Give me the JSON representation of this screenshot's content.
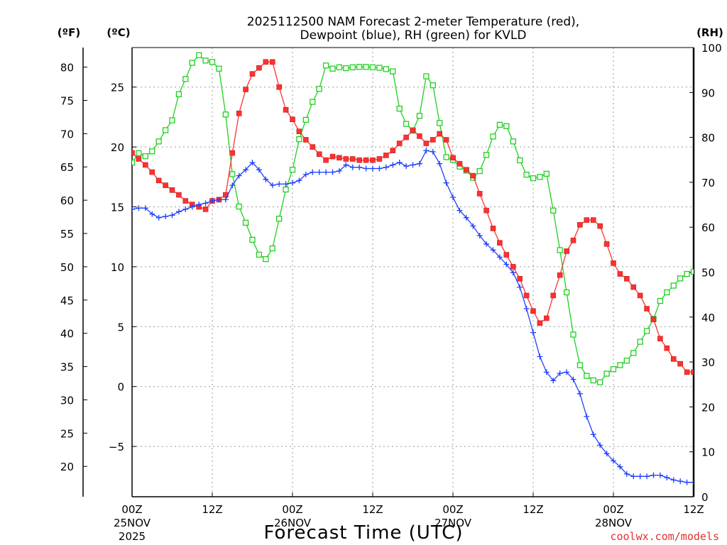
{
  "chart_data": {
    "type": "line",
    "title_line1": "2025112500 NAM Forecast 2-meter Temperature (red),",
    "title_line2": "Dewpoint (blue), RH (green) for KVLD",
    "xlabel": "Forecast Time (UTC)",
    "credit": "coolwx.com/models",
    "units": {
      "fahrenheit": "(ºF)",
      "celsius": "(ºC)",
      "rh": "(RH)"
    },
    "x_range_hours": [
      0,
      84
    ],
    "celsius_range": [
      -9.2,
      28.3
    ],
    "rh_range": [
      0,
      100
    ],
    "celsius_ticks": [
      -5,
      0,
      5,
      10,
      15,
      20,
      25
    ],
    "celsius_tick_labels": [
      "−5",
      "0",
      "5",
      "10",
      "15",
      "20",
      "25"
    ],
    "fahrenheit_ticks": [
      20,
      25,
      30,
      35,
      40,
      45,
      50,
      55,
      60,
      65,
      70,
      75,
      80
    ],
    "rh_ticks": [
      0,
      10,
      20,
      30,
      40,
      50,
      60,
      70,
      80,
      90,
      100
    ],
    "x_ticks": [
      {
        "hour": 0,
        "line1": "00Z",
        "line2": "25NOV",
        "line3": "2025"
      },
      {
        "hour": 12,
        "line1": "12Z",
        "line2": "",
        "line3": ""
      },
      {
        "hour": 24,
        "line1": "00Z",
        "line2": "26NOV",
        "line3": ""
      },
      {
        "hour": 36,
        "line1": "12Z",
        "line2": "",
        "line3": ""
      },
      {
        "hour": 48,
        "line1": "00Z",
        "line2": "27NOV",
        "line3": ""
      },
      {
        "hour": 60,
        "line1": "12Z",
        "line2": "",
        "line3": ""
      },
      {
        "hour": 72,
        "line1": "00Z",
        "line2": "28NOV",
        "line3": ""
      },
      {
        "hour": 84,
        "line1": "12Z",
        "line2": "",
        "line3": ""
      }
    ],
    "colors": {
      "temperature": "#ff3030",
      "dewpoint": "#2040ff",
      "rh": "#20d020",
      "marker_edge": "#c02020"
    },
    "series": [
      {
        "name": "Temperature",
        "unit": "C",
        "points": [
          [
            0,
            19.5
          ],
          [
            1,
            19.0
          ],
          [
            2,
            18.5
          ],
          [
            3,
            17.9
          ],
          [
            4,
            17.2
          ],
          [
            5,
            16.8
          ],
          [
            6,
            16.4
          ],
          [
            7,
            16.0
          ],
          [
            8,
            15.5
          ],
          [
            9,
            15.2
          ],
          [
            10,
            15.0
          ],
          [
            11,
            14.8
          ],
          [
            12,
            15.5
          ],
          [
            13,
            15.6
          ],
          [
            14,
            16.0
          ],
          [
            15,
            19.5
          ],
          [
            16,
            22.8
          ],
          [
            17,
            24.8
          ],
          [
            18,
            26.1
          ],
          [
            19,
            26.6
          ],
          [
            20,
            27.1
          ],
          [
            21,
            27.1
          ],
          [
            22,
            25.0
          ],
          [
            23,
            23.1
          ],
          [
            24,
            22.3
          ],
          [
            25,
            21.3
          ],
          [
            26,
            20.6
          ],
          [
            27,
            20.0
          ],
          [
            28,
            19.4
          ],
          [
            29,
            18.9
          ],
          [
            30,
            19.2
          ],
          [
            31,
            19.1
          ],
          [
            32,
            19.0
          ],
          [
            33,
            19.0
          ],
          [
            34,
            18.9
          ],
          [
            35,
            18.9
          ],
          [
            36,
            18.9
          ],
          [
            37,
            19.0
          ],
          [
            38,
            19.3
          ],
          [
            39,
            19.7
          ],
          [
            40,
            20.3
          ],
          [
            41,
            20.8
          ],
          [
            42,
            21.4
          ],
          [
            43,
            20.9
          ],
          [
            44,
            20.3
          ],
          [
            45,
            20.6
          ],
          [
            46,
            21.1
          ],
          [
            47,
            20.6
          ],
          [
            48,
            19.1
          ],
          [
            49,
            18.6
          ],
          [
            50,
            18.1
          ],
          [
            51,
            17.6
          ],
          [
            52,
            16.1
          ],
          [
            53,
            14.7
          ],
          [
            54,
            13.2
          ],
          [
            55,
            12.0
          ],
          [
            56,
            11.0
          ],
          [
            57,
            10.0
          ],
          [
            58,
            9.0
          ],
          [
            59,
            7.6
          ],
          [
            60,
            6.3
          ],
          [
            61,
            5.3
          ],
          [
            62,
            5.7
          ],
          [
            63,
            7.6
          ],
          [
            64,
            9.3
          ],
          [
            65,
            11.3
          ],
          [
            66,
            12.2
          ],
          [
            67,
            13.5
          ],
          [
            68,
            13.9
          ],
          [
            69,
            13.9
          ],
          [
            70,
            13.4
          ],
          [
            71,
            11.9
          ],
          [
            72,
            10.3
          ],
          [
            73,
            9.4
          ],
          [
            74,
            9.0
          ],
          [
            75,
            8.3
          ],
          [
            76,
            7.6
          ],
          [
            77,
            6.5
          ],
          [
            78,
            5.6
          ],
          [
            79,
            4.0
          ],
          [
            80,
            3.2
          ],
          [
            81,
            2.3
          ],
          [
            82,
            1.9
          ],
          [
            83,
            1.2
          ],
          [
            84,
            1.2
          ],
          [
            85,
            1.6
          ]
        ]
      },
      {
        "name": "Dewpoint",
        "unit": "C",
        "points": [
          [
            0,
            14.8
          ],
          [
            1,
            14.9
          ],
          [
            2,
            14.9
          ],
          [
            3,
            14.4
          ],
          [
            4,
            14.1
          ],
          [
            5,
            14.2
          ],
          [
            6,
            14.3
          ],
          [
            7,
            14.6
          ],
          [
            8,
            14.8
          ],
          [
            9,
            15.0
          ],
          [
            10,
            15.2
          ],
          [
            11,
            15.3
          ],
          [
            12,
            15.5
          ],
          [
            13,
            15.6
          ],
          [
            14,
            15.6
          ],
          [
            15,
            16.8
          ],
          [
            16,
            17.6
          ],
          [
            17,
            18.1
          ],
          [
            18,
            18.7
          ],
          [
            19,
            18.1
          ],
          [
            20,
            17.3
          ],
          [
            21,
            16.8
          ],
          [
            22,
            16.9
          ],
          [
            23,
            16.9
          ],
          [
            24,
            17.0
          ],
          [
            25,
            17.2
          ],
          [
            26,
            17.7
          ],
          [
            27,
            17.9
          ],
          [
            28,
            17.9
          ],
          [
            29,
            17.9
          ],
          [
            30,
            17.9
          ],
          [
            31,
            18.0
          ],
          [
            32,
            18.5
          ],
          [
            33,
            18.3
          ],
          [
            34,
            18.3
          ],
          [
            35,
            18.2
          ],
          [
            36,
            18.2
          ],
          [
            37,
            18.2
          ],
          [
            38,
            18.3
          ],
          [
            39,
            18.5
          ],
          [
            40,
            18.7
          ],
          [
            41,
            18.4
          ],
          [
            42,
            18.5
          ],
          [
            43,
            18.6
          ],
          [
            44,
            19.7
          ],
          [
            45,
            19.6
          ],
          [
            46,
            18.6
          ],
          [
            47,
            17.0
          ],
          [
            48,
            15.8
          ],
          [
            49,
            14.7
          ],
          [
            50,
            14.1
          ],
          [
            51,
            13.4
          ],
          [
            52,
            12.6
          ],
          [
            53,
            11.9
          ],
          [
            54,
            11.4
          ],
          [
            55,
            10.8
          ],
          [
            56,
            10.2
          ],
          [
            57,
            9.5
          ],
          [
            58,
            8.3
          ],
          [
            59,
            6.5
          ],
          [
            60,
            4.5
          ],
          [
            61,
            2.5
          ],
          [
            62,
            1.2
          ],
          [
            63,
            0.5
          ],
          [
            64,
            1.1
          ],
          [
            65,
            1.2
          ],
          [
            66,
            0.6
          ],
          [
            67,
            -0.6
          ],
          [
            68,
            -2.5
          ],
          [
            69,
            -4.0
          ],
          [
            70,
            -4.9
          ],
          [
            71,
            -5.6
          ],
          [
            72,
            -6.2
          ],
          [
            73,
            -6.7
          ],
          [
            74,
            -7.3
          ],
          [
            75,
            -7.5
          ],
          [
            76,
            -7.5
          ],
          [
            77,
            -7.5
          ],
          [
            78,
            -7.4
          ],
          [
            79,
            -7.4
          ],
          [
            80,
            -7.6
          ],
          [
            81,
            -7.8
          ],
          [
            82,
            -7.9
          ],
          [
            83,
            -8.0
          ],
          [
            84,
            -8.0
          ],
          [
            85,
            -8.2
          ]
        ]
      },
      {
        "name": "RH",
        "unit": "%",
        "points": [
          [
            0,
            74.4
          ],
          [
            1,
            76.5
          ],
          [
            2,
            75.8
          ],
          [
            3,
            76.9
          ],
          [
            4,
            79.1
          ],
          [
            5,
            81.6
          ],
          [
            6,
            83.8
          ],
          [
            7,
            89.6
          ],
          [
            8,
            93.0
          ],
          [
            9,
            96.6
          ],
          [
            10,
            98.3
          ],
          [
            11,
            97.1
          ],
          [
            12,
            96.8
          ],
          [
            13,
            95.3
          ],
          [
            14,
            85.1
          ],
          [
            15,
            71.8
          ],
          [
            16,
            64.6
          ],
          [
            17,
            61.0
          ],
          [
            18,
            57.2
          ],
          [
            19,
            53.9
          ],
          [
            20,
            52.9
          ],
          [
            21,
            55.3
          ],
          [
            22,
            61.9
          ],
          [
            23,
            68.4
          ],
          [
            24,
            72.8
          ],
          [
            25,
            79.6
          ],
          [
            26,
            83.9
          ],
          [
            27,
            87.9
          ],
          [
            28,
            90.8
          ],
          [
            29,
            96.0
          ],
          [
            30,
            95.3
          ],
          [
            31,
            95.6
          ],
          [
            32,
            95.4
          ],
          [
            33,
            95.6
          ],
          [
            34,
            95.7
          ],
          [
            35,
            95.7
          ],
          [
            36,
            95.6
          ],
          [
            37,
            95.5
          ],
          [
            38,
            95.2
          ],
          [
            39,
            94.7
          ],
          [
            40,
            86.4
          ],
          [
            41,
            83.0
          ],
          [
            42,
            81.5
          ],
          [
            43,
            84.8
          ],
          [
            44,
            93.6
          ],
          [
            45,
            91.6
          ],
          [
            46,
            83.2
          ],
          [
            47,
            75.6
          ],
          [
            48,
            75.0
          ],
          [
            49,
            73.5
          ],
          [
            50,
            72.6
          ],
          [
            51,
            71.0
          ],
          [
            52,
            72.5
          ],
          [
            53,
            76.1
          ],
          [
            54,
            80.2
          ],
          [
            55,
            82.8
          ],
          [
            56,
            82.5
          ],
          [
            57,
            79.1
          ],
          [
            58,
            74.9
          ],
          [
            59,
            71.7
          ],
          [
            60,
            70.9
          ],
          [
            61,
            71.2
          ],
          [
            62,
            71.9
          ],
          [
            63,
            63.7
          ],
          [
            64,
            54.9
          ],
          [
            65,
            45.5
          ],
          [
            66,
            36.1
          ],
          [
            67,
            29.3
          ],
          [
            68,
            26.9
          ],
          [
            69,
            25.9
          ],
          [
            70,
            25.5
          ],
          [
            71,
            27.4
          ],
          [
            72,
            28.4
          ],
          [
            73,
            29.3
          ],
          [
            74,
            30.3
          ],
          [
            75,
            32.0
          ],
          [
            76,
            34.5
          ],
          [
            77,
            36.9
          ],
          [
            78,
            39.6
          ],
          [
            79,
            43.6
          ],
          [
            80,
            45.5
          ],
          [
            81,
            47.0
          ],
          [
            82,
            48.6
          ],
          [
            83,
            49.6
          ],
          [
            84,
            50.1
          ],
          [
            85,
            49.0
          ]
        ]
      }
    ]
  }
}
